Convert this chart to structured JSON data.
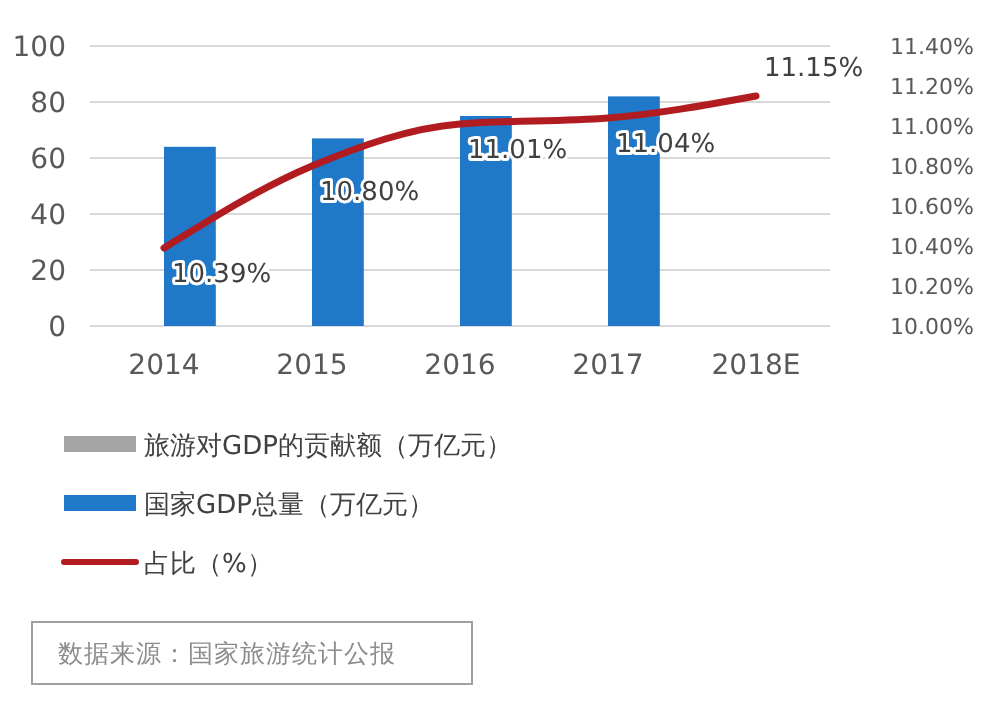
{
  "chart_data": {
    "type": "bar",
    "categories": [
      "2014",
      "2015",
      "2016",
      "2017",
      "2018E"
    ],
    "series": [
      {
        "name": "旅游对GDP的贡献额（万亿元）",
        "color": "#a5a5a5",
        "values": [
          null,
          null,
          null,
          null,
          null
        ]
      },
      {
        "name": "国家GDP总量（万亿元）",
        "color": "#1f78c8",
        "values": [
          64,
          67,
          75,
          82,
          null
        ]
      },
      {
        "name": "占比（%）",
        "type": "line",
        "axis": "y2",
        "color": "#b01c20",
        "values": [
          10.39,
          10.8,
          11.01,
          11.04,
          11.15
        ],
        "value_labels": [
          "10.39%",
          "10.80%",
          "11.01%",
          "11.04%",
          "11.15%"
        ]
      }
    ],
    "ylim": [
      0,
      100
    ],
    "yticks": [
      0,
      20,
      40,
      60,
      80,
      100
    ],
    "y2lim": [
      10.0,
      11.4
    ],
    "y2ticks": [
      {
        "value": 10.0,
        "label": "10.00%"
      },
      {
        "value": 10.2,
        "label": "10.20%"
      },
      {
        "value": 10.4,
        "label": "10.40%"
      },
      {
        "value": 10.6,
        "label": "10.60%"
      },
      {
        "value": 10.8,
        "label": "10.80%"
      },
      {
        "value": 11.0,
        "label": "11.00%"
      },
      {
        "value": 11.2,
        "label": "11.20%"
      },
      {
        "value": 11.4,
        "label": "11.40%"
      }
    ],
    "grid": "y",
    "legend": "bottom left",
    "annotations": [
      "数据来源：国家旅游统计公报"
    ]
  }
}
